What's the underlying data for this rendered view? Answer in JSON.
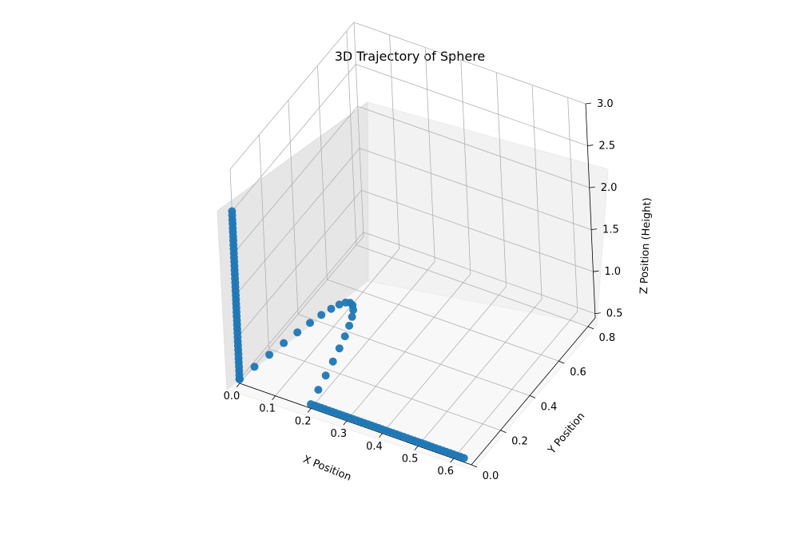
{
  "chart_data": {
    "type": "scatter",
    "title": "3D Trajectory of Sphere",
    "xlabel": "X Position",
    "ylabel": "Y Position",
    "zlabel": "Z Position (Height)",
    "xlim": [
      0.0,
      0.65
    ],
    "ylim": [
      0.0,
      0.85
    ],
    "zlim": [
      0.45,
      3.0
    ],
    "xticks": [
      "0.0",
      "0.1",
      "0.2",
      "0.3",
      "0.4",
      "0.5",
      "0.6"
    ],
    "yticks": [
      "0.0",
      "0.2",
      "0.4",
      "0.6",
      "0.8"
    ],
    "zticks": [
      "0.5",
      "1.0",
      "1.5",
      "2.0",
      "2.5",
      "3.0"
    ],
    "grid": true,
    "projection": "3d",
    "series": [
      {
        "color": "#1f77b4",
        "x": [
          0.0,
          0.0,
          0.0,
          0.0,
          0.0,
          0.0,
          0.0,
          0.0,
          0.0,
          0.0,
          0.0,
          0.0,
          0.0,
          0.0,
          0.0,
          0.0,
          0.0,
          0.0,
          0.0,
          0.0,
          0.0,
          0.0,
          0.0,
          0.0,
          0.0,
          0.0,
          0.0,
          0.0,
          0.0,
          0.0,
          0.0,
          0.0,
          0.0,
          0.0,
          0.0,
          0.0,
          0.0,
          0.0,
          0.0,
          0.0,
          0.0,
          0.0,
          0.0,
          0.0,
          0.0,
          0.0,
          0.0,
          0.0,
          0.0,
          0.0,
          0.0,
          0.01,
          0.02,
          0.03,
          0.04,
          0.05,
          0.06,
          0.07,
          0.08,
          0.09,
          0.1,
          0.11,
          0.12,
          0.13,
          0.14,
          0.15,
          0.16,
          0.17,
          0.18,
          0.19,
          0.2,
          0.21,
          0.22,
          0.23,
          0.24,
          0.25,
          0.26,
          0.27,
          0.28,
          0.29,
          0.3,
          0.31,
          0.32,
          0.33,
          0.34,
          0.35,
          0.36,
          0.37,
          0.38,
          0.39,
          0.4,
          0.41,
          0.42,
          0.43,
          0.44,
          0.45,
          0.46,
          0.47,
          0.48,
          0.49,
          0.5,
          0.51,
          0.52,
          0.53,
          0.54,
          0.55,
          0.56,
          0.57,
          0.58,
          0.59,
          0.6,
          0.61,
          0.62,
          0.63
        ],
        "y": [
          0.0,
          0.0,
          0.0,
          0.0,
          0.0,
          0.0,
          0.0,
          0.0,
          0.0,
          0.0,
          0.0,
          0.0,
          0.0,
          0.0,
          0.0,
          0.0,
          0.0,
          0.0,
          0.0,
          0.0,
          0.0,
          0.0,
          0.0,
          0.0,
          0.0,
          0.0,
          0.0,
          0.0,
          0.0,
          0.0,
          0.0,
          0.0,
          0.0,
          0.0,
          0.0,
          0.0,
          0.0,
          0.0,
          0.0,
          0.0,
          0.0,
          0.0,
          0.0,
          0.0,
          0.0,
          0.0,
          0.0,
          0.0,
          0.0,
          0.0,
          0.0,
          0.0784,
          0.1558,
          0.2301,
          0.2993,
          0.3614,
          0.4147,
          0.4577,
          0.4892,
          0.5082,
          0.5142,
          0.507,
          0.4868,
          0.4543,
          0.4104,
          0.3565,
          0.2941,
          0.2252,
          0.1517,
          0.0759,
          0.0,
          0.0,
          0.0,
          0.0,
          0.0,
          0.0,
          0.0,
          0.0,
          0.0,
          0.0,
          0.0,
          0.0,
          0.0,
          0.0,
          0.0,
          0.0,
          0.0,
          0.0,
          0.0,
          0.0,
          0.0,
          0.0,
          0.0,
          0.0,
          0.0,
          0.0,
          0.0,
          0.0,
          0.0,
          0.0,
          0.0,
          0.0,
          0.0,
          0.0,
          0.0,
          0.0,
          0.0,
          0.0,
          0.0,
          0.0,
          0.0,
          0.0,
          0.0,
          0.0
        ],
        "z": [
          2.5,
          2.45,
          2.4,
          2.35,
          2.3,
          2.25,
          2.2,
          2.15,
          2.1,
          2.05,
          2.0,
          1.95,
          1.9,
          1.85,
          1.8,
          1.75,
          1.7,
          1.65,
          1.6,
          1.55,
          1.5,
          1.45,
          1.4,
          1.35,
          1.3,
          1.25,
          1.2,
          1.15,
          1.1,
          1.05,
          1.0,
          0.95,
          0.9,
          0.85,
          0.8,
          0.75,
          0.7,
          0.65,
          0.6,
          0.55,
          0.5,
          0.5,
          0.5,
          0.5,
          0.5,
          0.5,
          0.5,
          0.5,
          0.5,
          0.5,
          0.5,
          0.5,
          0.5,
          0.5,
          0.5,
          0.5,
          0.5,
          0.5,
          0.5,
          0.5,
          0.5,
          0.5,
          0.5,
          0.5,
          0.5,
          0.5,
          0.5,
          0.5,
          0.5,
          0.5,
          0.5,
          0.5,
          0.5,
          0.5,
          0.5,
          0.5,
          0.5,
          0.5,
          0.5,
          0.5,
          0.5,
          0.5,
          0.5,
          0.5,
          0.5,
          0.5,
          0.5,
          0.5,
          0.5,
          0.5,
          0.5,
          0.5,
          0.5,
          0.5,
          0.5,
          0.5,
          0.5,
          0.5,
          0.5,
          0.5,
          0.5,
          0.5,
          0.5,
          0.5,
          0.5,
          0.5,
          0.5,
          0.5,
          0.5,
          0.5,
          0.5,
          0.5,
          0.5,
          0.5
        ]
      }
    ]
  }
}
